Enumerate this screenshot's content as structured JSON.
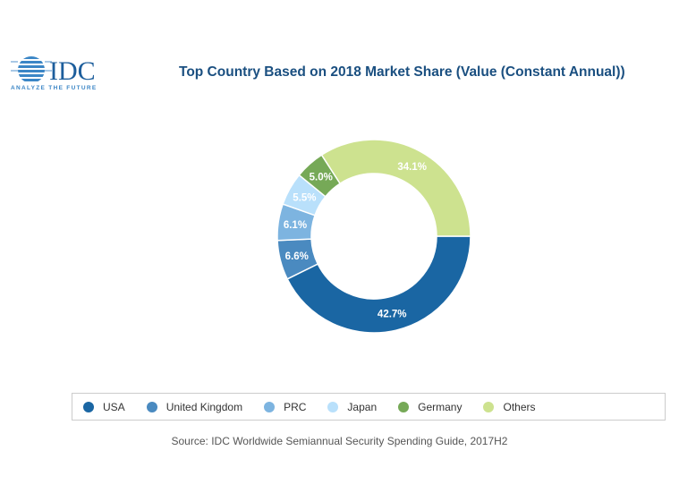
{
  "logo": {
    "text": "IDC",
    "tagline": "ANALYZE THE FUTURE"
  },
  "chart_data": {
    "type": "pie",
    "variant": "donut",
    "title": "Top Country Based on 2018 Market Share (Value (Constant Annual))",
    "categories": [
      "USA",
      "United Kingdom",
      "PRC",
      "Japan",
      "Germany",
      "Others"
    ],
    "values": [
      42.7,
      6.6,
      6.1,
      5.5,
      5.0,
      34.1
    ],
    "labels": [
      "42.7%",
      "6.6%",
      "6.1%",
      "5.5%",
      "5.0%",
      "34.1%"
    ],
    "colors": [
      "#1a66a3",
      "#4a8ac0",
      "#7db4e0",
      "#b9e0fb",
      "#76a957",
      "#cde28f"
    ],
    "legend_position": "bottom",
    "source": "Source: IDC Worldwide Semiannual Security Spending Guide, 2017H2"
  }
}
